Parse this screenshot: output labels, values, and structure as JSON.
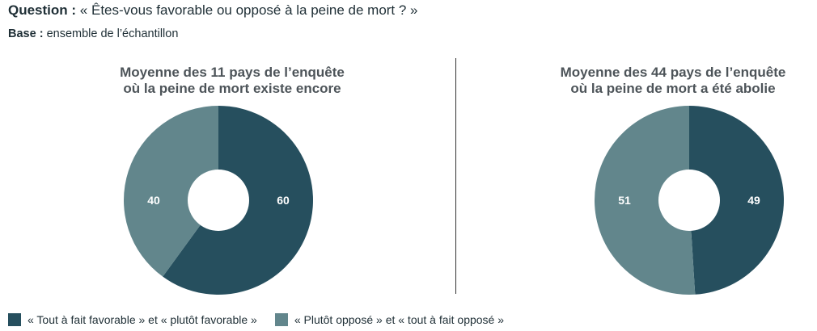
{
  "header": {
    "question_label": "Question :",
    "question_text": "« Êtes-vous favorable ou opposé à la peine de mort ? »",
    "base_label": "Base :",
    "base_text": "ensemble de l’échantillon"
  },
  "colors": {
    "favorable": "#264f5e",
    "oppose": "#62868c",
    "hole": "#ffffff"
  },
  "legend": [
    {
      "label": "« Tout à fait favorable » et « plutôt favorable »",
      "color": "#264f5e"
    },
    {
      "label": "« Plutôt opposé » et « tout à fait opposé »",
      "color": "#62868c"
    }
  ],
  "chart_data": [
    {
      "type": "pie",
      "title_line1": "Moyenne des 11 pays de l’enquête",
      "title_line2": "où la peine de mort existe encore",
      "slices": [
        {
          "label": "« Tout à fait favorable » et « plutôt favorable »",
          "value": 60,
          "display": "60",
          "color": "#264f5e"
        },
        {
          "label": "« Plutôt opposé » et « tout à fait opposé »",
          "value": 40,
          "display": "40",
          "color": "#62868c"
        }
      ]
    },
    {
      "type": "pie",
      "title_line1": "Moyenne des 44 pays de l’enquête",
      "title_line2": "où la peine de mort a été abolie",
      "slices": [
        {
          "label": "« Tout à fait favorable » et « plutôt favorable »",
          "value": 49,
          "display": "49",
          "color": "#264f5e"
        },
        {
          "label": "« Plutôt opposé » et « tout à fait opposé »",
          "value": 51,
          "display": "51",
          "color": "#62868c"
        }
      ]
    }
  ]
}
